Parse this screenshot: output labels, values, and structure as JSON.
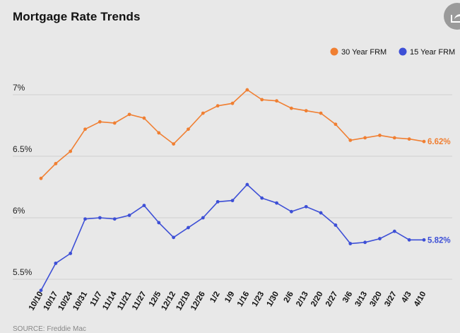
{
  "header": {
    "title": "Mortgage Rate Trends",
    "share_icon": "share-icon"
  },
  "footer": {
    "source": "SOURCE: Freddie Mac"
  },
  "chart_data": {
    "type": "line",
    "title": "Mortgage Rate Trends",
    "xlabel": "",
    "ylabel": "",
    "grid": true,
    "legend": "top-right",
    "categories": [
      "10/10",
      "10/17",
      "10/24",
      "10/31",
      "11/7",
      "11/14",
      "11/21",
      "11/27",
      "12/5",
      "12/12",
      "12/19",
      "12/26",
      "1/2",
      "1/9",
      "1/16",
      "1/23",
      "1/30",
      "2/6",
      "2/13",
      "2/20",
      "2/27",
      "3/6",
      "3/13",
      "3/20",
      "3/27",
      "4/3",
      "4/10"
    ],
    "yticks": [
      {
        "value": 7.0,
        "label": "7%"
      },
      {
        "value": 6.5,
        "label": "6.5%"
      },
      {
        "value": 6.0,
        "label": "6%"
      },
      {
        "value": 5.5,
        "label": "5.5%"
      }
    ],
    "series": [
      {
        "name": "30 Year FRM",
        "color": "#f07f32",
        "values": [
          6.32,
          6.44,
          6.54,
          6.72,
          6.78,
          6.77,
          6.84,
          6.81,
          6.69,
          6.6,
          6.72,
          6.85,
          6.91,
          6.93,
          7.04,
          6.96,
          6.95,
          6.89,
          6.87,
          6.85,
          6.76,
          6.63,
          6.65,
          6.67,
          6.65,
          6.64,
          6.62
        ],
        "end_label": "6.62%"
      },
      {
        "name": "15 Year FRM",
        "color": "#3d4fd6",
        "values": [
          5.41,
          5.63,
          5.71,
          5.99,
          6.0,
          5.99,
          6.02,
          6.1,
          5.96,
          5.84,
          5.92,
          6.0,
          6.13,
          6.14,
          6.27,
          6.16,
          6.12,
          6.05,
          6.09,
          6.04,
          5.94,
          5.79,
          5.8,
          5.83,
          5.89,
          5.82,
          5.82
        ],
        "end_label": "5.82%"
      }
    ]
  }
}
